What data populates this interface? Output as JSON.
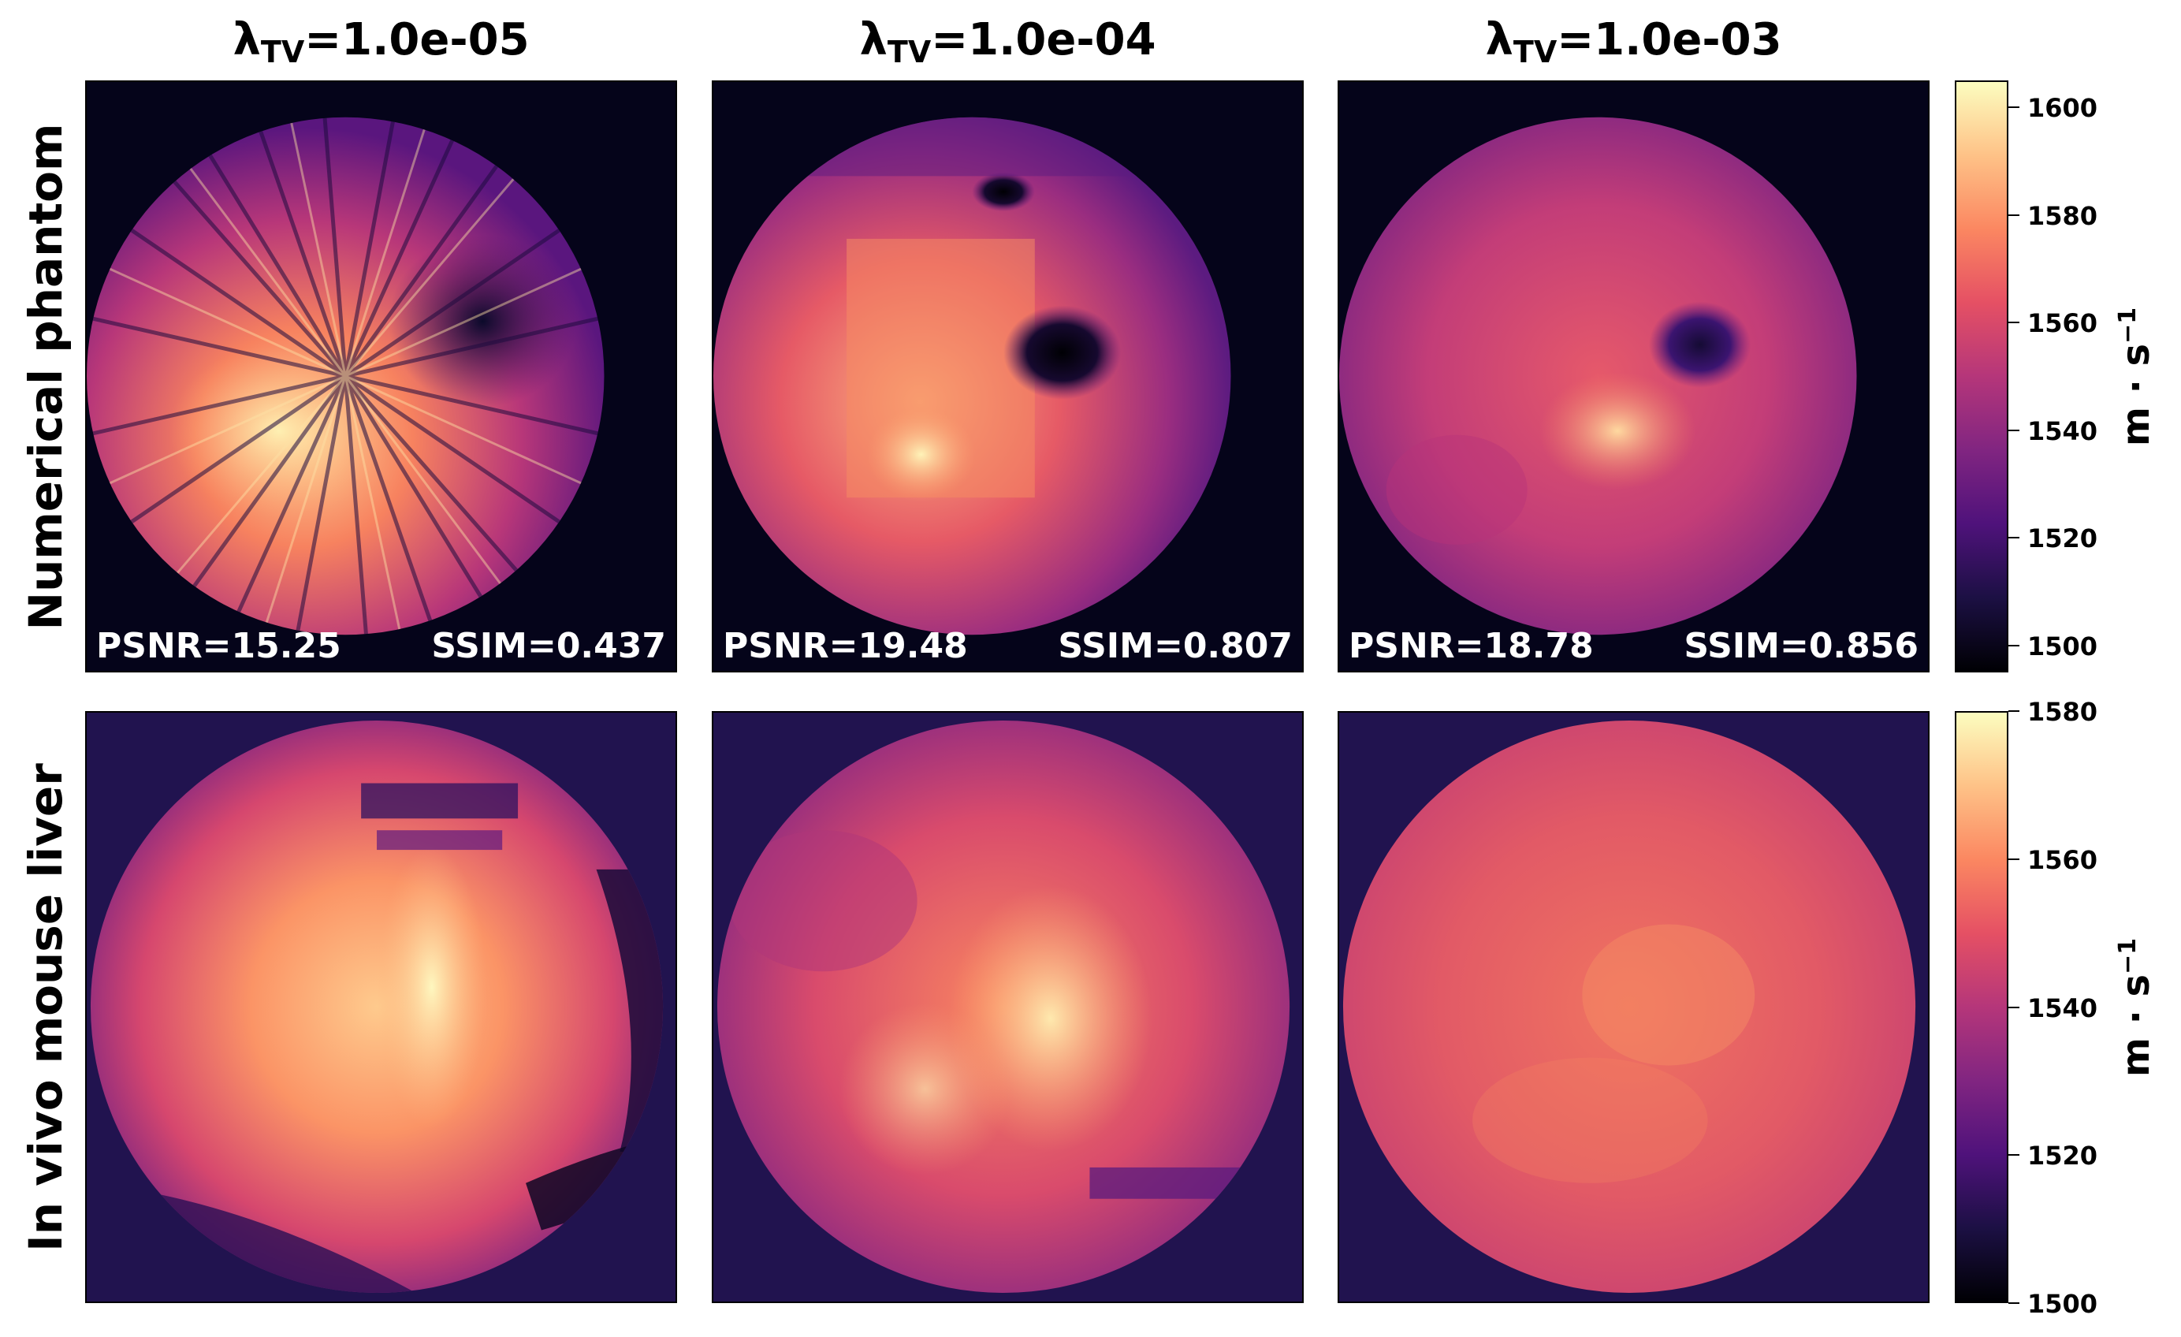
{
  "columns": [
    {
      "lambda_symbol": "λ",
      "lambda_sub": "TV",
      "value": "=1.0e-05"
    },
    {
      "lambda_symbol": "λ",
      "lambda_sub": "TV",
      "value": "=1.0e-04"
    },
    {
      "lambda_symbol": "λ",
      "lambda_sub": "TV",
      "value": "=1.0e-03"
    }
  ],
  "rows": [
    {
      "label": "Numerical phantom"
    },
    {
      "label": "In vivo mouse liver"
    }
  ],
  "metrics": [
    {
      "psnr": "PSNR=15.25",
      "ssim": "SSIM=0.437"
    },
    {
      "psnr": "PSNR=19.48",
      "ssim": "SSIM=0.807"
    },
    {
      "psnr": "PSNR=18.78",
      "ssim": "SSIM=0.856"
    }
  ],
  "colorbars": [
    {
      "ticks": [
        "1500",
        "1520",
        "1540",
        "1560",
        "1580",
        "1600"
      ],
      "range": [
        1495,
        1605
      ],
      "unit": "m · s",
      "unit_exp": "−1"
    },
    {
      "ticks": [
        "1500",
        "1520",
        "1540",
        "1560",
        "1580"
      ],
      "range": [
        1500,
        1580
      ],
      "unit": "m · s",
      "unit_exp": "−1"
    }
  ],
  "colors": {
    "phantom_background": "#05041a",
    "liver_background": "#21134f",
    "colormap": "magma"
  }
}
